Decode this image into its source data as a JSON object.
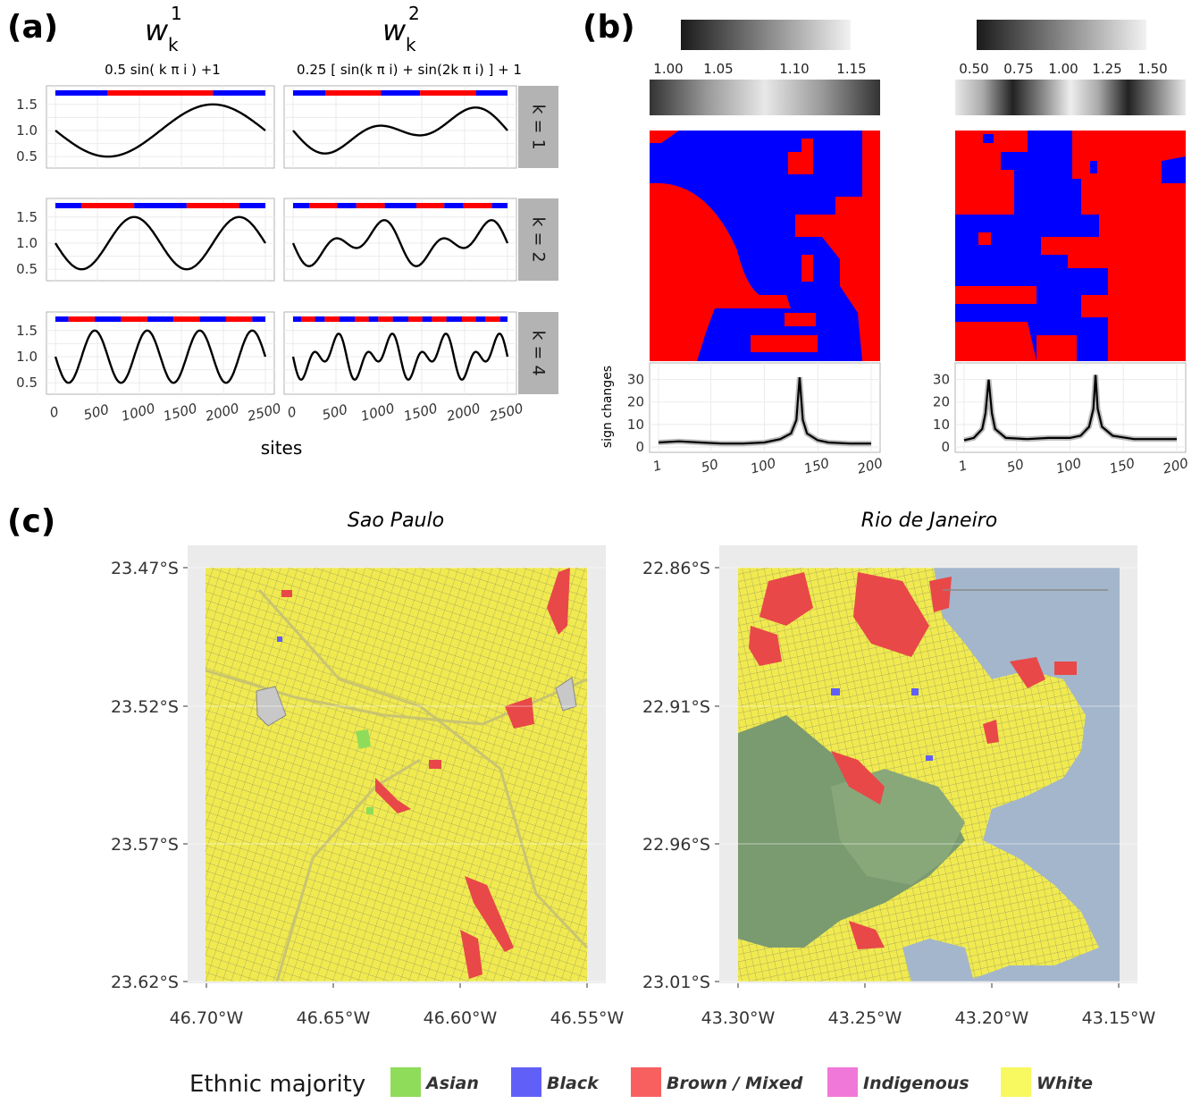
{
  "panel_a": {
    "label": "(a)",
    "col_titles": [
      {
        "main": "w",
        "sub": "k",
        "sup": "1",
        "formula": "0.5 sin( k π i ) +1"
      },
      {
        "main": "w",
        "sub": "k",
        "sup": "2",
        "formula": "0.25 [ sin(k π i) + sin(2k π i) ] + 1"
      }
    ],
    "strips": [
      "k = 1",
      "k = 2",
      "k = 4"
    ],
    "y_ticks": [
      "1.5",
      "1.0",
      "0.5"
    ],
    "x_ticks": [
      "0",
      "500",
      "1000",
      "1500",
      "2000",
      "2500"
    ],
    "xlabel": "sites"
  },
  "panel_b": {
    "label": "(b)",
    "colorbar_left_ticks": [
      "1.00",
      "1.05",
      "1.10",
      "1.15"
    ],
    "colorbar_right_ticks": [
      "0.50",
      "0.75",
      "1.00",
      "1.25",
      "1.50"
    ],
    "ylabel": "sign changes",
    "y_ticks": [
      "30",
      "20",
      "10",
      "0"
    ],
    "x_ticks": [
      "1",
      "50",
      "100",
      "150",
      "200"
    ]
  },
  "panel_c": {
    "label": "(c)",
    "sao_paulo": {
      "title": "Sao Paulo",
      "lat_ticks": [
        "23.47°S",
        "23.52°S",
        "23.57°S",
        "23.62°S"
      ],
      "lon_ticks": [
        "46.70°W",
        "46.65°W",
        "46.60°W",
        "46.55°W"
      ]
    },
    "rio": {
      "title": "Rio de Janeiro",
      "lat_ticks": [
        "22.86°S",
        "22.91°S",
        "22.96°S",
        "23.01°S"
      ],
      "lon_ticks": [
        "43.30°W",
        "43.25°W",
        "43.20°W",
        "43.15°W"
      ]
    },
    "legend": {
      "title": "Ethnic majority",
      "items": [
        {
          "label": "Asian",
          "color": "#8fdc5a"
        },
        {
          "label": "Black",
          "color": "#6060f8"
        },
        {
          "label": "Brown / Mixed",
          "color": "#f86060"
        },
        {
          "label": "Indigenous",
          "color": "#f078d8"
        },
        {
          "label": "White",
          "color": "#f8f860"
        }
      ]
    }
  },
  "chart_data": [
    {
      "type": "line",
      "title": "w_k^1 = 0.5 sin( k π i ) +1",
      "xlabel": "sites",
      "ylim": [
        0.5,
        1.5
      ],
      "xlim": [
        0,
        2500
      ],
      "series": [
        {
          "name": "k = 1",
          "amplitude": 0.5,
          "offset": 1,
          "cycles": 1
        },
        {
          "name": "k = 2",
          "amplitude": 0.5,
          "offset": 1,
          "cycles": 2
        },
        {
          "name": "k = 4",
          "amplitude": 0.5,
          "offset": 1,
          "cycles": 4
        }
      ]
    },
    {
      "type": "line",
      "title": "w_k^2 = 0.25 [ sin(k π i) + sin(2k π i) ] + 1",
      "xlabel": "sites",
      "ylim": [
        0.5,
        1.5
      ],
      "xlim": [
        0,
        2500
      ],
      "series": [
        {
          "name": "k = 1",
          "cycles": 1
        },
        {
          "name": "k = 2",
          "cycles": 2
        },
        {
          "name": "k = 4",
          "cycles": 4
        }
      ]
    },
    {
      "type": "line",
      "ylabel": "sign changes",
      "x": [
        1,
        20,
        40,
        60,
        80,
        100,
        115,
        125,
        130,
        133,
        136,
        140,
        150,
        160,
        180,
        200
      ],
      "series": [
        {
          "values": [
            2,
            2.5,
            2,
            1.5,
            1.5,
            2,
            3.5,
            6,
            12,
            31,
            12,
            6,
            3,
            2,
            1.5,
            1.5
          ]
        }
      ],
      "ylim": [
        0,
        35
      ]
    },
    {
      "type": "line",
      "ylabel": "sign changes",
      "x": [
        1,
        10,
        18,
        21,
        24,
        27,
        30,
        40,
        60,
        80,
        100,
        110,
        118,
        122,
        124,
        126,
        130,
        140,
        160,
        180,
        200
      ],
      "series": [
        {
          "values": [
            3,
            4,
            8,
            15,
            30,
            15,
            8,
            4,
            3.5,
            4,
            4,
            5,
            9,
            17,
            32,
            17,
            9,
            5,
            3.5,
            3.5,
            3.5
          ]
        }
      ],
      "ylim": [
        0,
        35
      ]
    }
  ]
}
